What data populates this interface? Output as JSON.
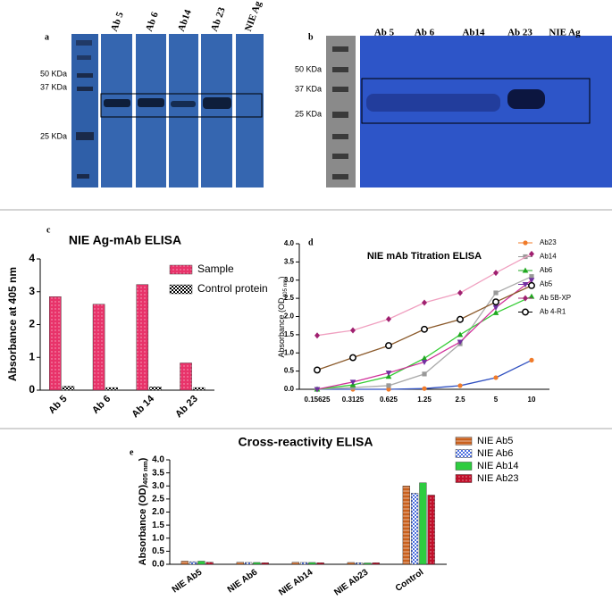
{
  "blots": [
    {
      "letter": "a",
      "lanes": [
        "Ab 5",
        "Ab 6",
        "Ab14",
        "Ab 23",
        "NIE Ag"
      ],
      "markers": [
        "50 KDa",
        "37 KDa",
        "25 KDa"
      ]
    },
    {
      "letter": "b",
      "lanes": [
        "Ab 5",
        "Ab 6",
        "Ab14",
        "Ab 23",
        "NIE Ag"
      ],
      "markers": [
        "50 KDa",
        "37 KDa",
        "25 KDa"
      ]
    }
  ],
  "chart_data": [
    {
      "type": "bar",
      "letter": "c",
      "title": "NIE Ag-mAb ELISA",
      "y_label": "Absorbance at 405 nm",
      "categories": [
        "Ab 5",
        "Ab 6",
        "Ab 14",
        "Ab 23"
      ],
      "series": [
        {
          "name": "Sample",
          "color": "#e8336a",
          "pattern": "dots",
          "values": [
            2.85,
            2.62,
            3.22,
            0.83
          ]
        },
        {
          "name": "Control protein",
          "color": "#000000",
          "pattern": "checker",
          "values": [
            0.12,
            0.08,
            0.1,
            0.08
          ]
        }
      ],
      "ylim": [
        0,
        4
      ],
      "yticks": [
        0,
        1,
        2,
        3,
        4
      ],
      "legend": "upper right"
    },
    {
      "type": "line",
      "letter": "d",
      "title": "NIE mAb Titration ELISA",
      "y_label": [
        "Absorbance (OD",
        "405 nm",
        ")"
      ],
      "categories": [
        "0.15625",
        "0.3125",
        "0.625",
        "1.25",
        "2.5",
        "5",
        "10"
      ],
      "series": [
        {
          "name": "Ab23",
          "color": "#f07b2a",
          "line_color": "#3050c0",
          "marker": "circle",
          "values": [
            0,
            0,
            0,
            0.02,
            0.1,
            0.32,
            0.8
          ]
        },
        {
          "name": "Ab14",
          "color": "#999999",
          "line_color": "#aaaaaa",
          "marker": "square",
          "values": [
            0,
            0.05,
            0.1,
            0.42,
            1.25,
            2.65,
            3.1
          ]
        },
        {
          "name": "Ab6",
          "color": "#1fa81f",
          "line_color": "#33cc33",
          "marker": "triangle",
          "values": [
            0,
            0.12,
            0.35,
            0.85,
            1.5,
            2.1,
            2.55
          ]
        },
        {
          "name": "Ab5",
          "color": "#7030a0",
          "line_color": "#d0309a",
          "marker": "triangle-down",
          "values": [
            0,
            0.2,
            0.45,
            0.75,
            1.3,
            2.25,
            3.0
          ]
        },
        {
          "name": "Ab 5B-XP",
          "color": "#a02070",
          "line_color": "#f0a0c0",
          "marker": "diamond",
          "values": [
            1.48,
            1.62,
            1.93,
            2.38,
            2.65,
            3.2,
            3.72
          ]
        },
        {
          "name": "Ab 4-R1",
          "color": "#000000",
          "line_color": "#8b5a2b",
          "marker": "open-circle",
          "values": [
            0.53,
            0.87,
            1.2,
            1.65,
            1.92,
            2.4,
            2.85
          ]
        }
      ],
      "ylim": [
        0,
        4
      ],
      "yticks": [
        {
          "value": 0,
          "label": "0.0"
        },
        {
          "value": 0.5,
          "label": "0.5"
        },
        {
          "value": 1,
          "label": "1.0"
        },
        {
          "value": 1.5,
          "label": "1.5"
        },
        {
          "value": 2,
          "label": "2.0"
        },
        {
          "value": 2.5,
          "label": "2.5"
        },
        {
          "value": 3,
          "label": "3.0"
        },
        {
          "value": 3.5,
          "label": "3.5"
        },
        {
          "value": 4,
          "label": "4.0"
        }
      ],
      "legend": "outside right"
    },
    {
      "type": "bar",
      "letter": "e",
      "title": "Cross-reactivity ELISA",
      "y_label": [
        "Absorbance (OD)",
        "405 nm",
        ")"
      ],
      "categories": [
        "NIE Ab5",
        "NIE Ab6",
        "NIE Ab14",
        "NIE Ab23",
        "Control"
      ],
      "series": [
        {
          "name": "NIE Ab5",
          "color": "#c8601e",
          "pattern": "hatch",
          "values": [
            0.12,
            0.08,
            0.08,
            0.07,
            3.0
          ]
        },
        {
          "name": "NIE Ab6",
          "color": "#4a6ee0",
          "pattern": "checker",
          "values": [
            0.1,
            0.07,
            0.07,
            0.06,
            2.72
          ]
        },
        {
          "name": "NIE Ab14",
          "color": "#2ecc40",
          "pattern": "solid",
          "values": [
            0.12,
            0.07,
            0.07,
            0.05,
            3.12
          ]
        },
        {
          "name": "NIE Ab23",
          "color": "#c0102a",
          "pattern": "dots",
          "values": [
            0.08,
            0.06,
            0.06,
            0.06,
            2.65
          ]
        }
      ],
      "ylim": [
        0,
        4
      ],
      "yticks": [
        {
          "value": 0,
          "label": "0.0"
        },
        {
          "value": 0.5,
          "label": "0.5"
        },
        {
          "value": 1,
          "label": "1.0"
        },
        {
          "value": 1.5,
          "label": "1.5"
        },
        {
          "value": 2,
          "label": "2.0"
        },
        {
          "value": 2.5,
          "label": "2.5"
        },
        {
          "value": 3,
          "label": "3.0"
        },
        {
          "value": 3.5,
          "label": "3.5"
        },
        {
          "value": 4,
          "label": "4.0"
        }
      ],
      "legend": "outside right"
    }
  ]
}
